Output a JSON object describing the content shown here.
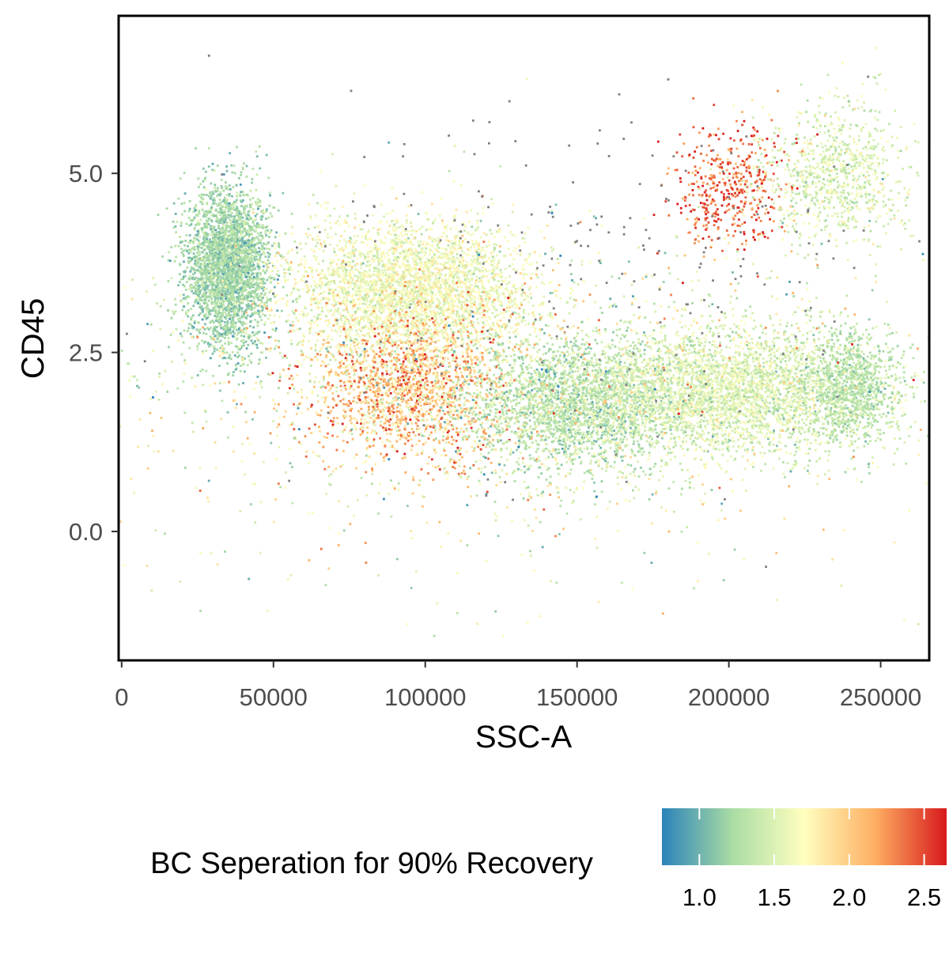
{
  "chart_data": {
    "type": "scatter",
    "title": "",
    "xlabel": "SSC-A",
    "ylabel": "CD45",
    "xlim": [
      -1000,
      266000
    ],
    "ylim": [
      -1.8,
      7.2
    ],
    "x_ticks": [
      0,
      50000,
      100000,
      150000,
      200000,
      250000
    ],
    "x_tick_labels": [
      "0",
      "50000",
      "100000",
      "150000",
      "200000",
      "250000"
    ],
    "y_ticks": [
      0.0,
      2.5,
      5.0
    ],
    "y_tick_labels": [
      "0.0",
      "2.5",
      "5.0"
    ],
    "grid": false,
    "point_color_na": "#7f7f7f",
    "color_scale": {
      "title": "BC Seperation for 90% Recovery",
      "position": "bottom",
      "range": [
        0.75,
        2.65
      ],
      "ticks": [
        1.0,
        1.5,
        2.0,
        2.5
      ],
      "tick_labels": [
        "1.0",
        "1.5",
        "2.0",
        "2.5"
      ],
      "palette": [
        "#2b83ba",
        "#abdda4",
        "#ffffbf",
        "#fdae61",
        "#d7191c"
      ]
    },
    "series": [
      {
        "clusters": [
          {
            "x": 35000,
            "y": 3.7,
            "sx": 7000,
            "sy": 0.55,
            "n": 3000,
            "color_value": 1.2,
            "color_sd": 0.12
          },
          {
            "x": 95000,
            "y": 3.4,
            "sx": 20000,
            "sy": 0.45,
            "n": 3200,
            "color_value": 1.62,
            "color_sd": 0.15
          },
          {
            "x": 95000,
            "y": 2.05,
            "sx": 17000,
            "sy": 0.5,
            "n": 1800,
            "color_value": 2.05,
            "color_sd": 0.3
          },
          {
            "x": 150000,
            "y": 1.8,
            "sx": 18000,
            "sy": 0.45,
            "n": 2400,
            "color_value": 1.3,
            "color_sd": 0.15
          },
          {
            "x": 200000,
            "y": 1.95,
            "sx": 25000,
            "sy": 0.45,
            "n": 3400,
            "color_value": 1.5,
            "color_sd": 0.15
          },
          {
            "x": 240000,
            "y": 2.05,
            "sx": 8000,
            "sy": 0.4,
            "n": 900,
            "color_value": 1.3,
            "color_sd": 0.1
          },
          {
            "x": 200000,
            "y": 4.8,
            "sx": 10000,
            "sy": 0.45,
            "n": 450,
            "color_value": 2.4,
            "color_sd": 0.2
          },
          {
            "x": 235000,
            "y": 5.0,
            "sx": 12000,
            "sy": 0.5,
            "n": 900,
            "color_value": 1.5,
            "color_sd": 0.15
          },
          {
            "x": 120000,
            "y": 2.0,
            "sx": 70000,
            "sy": 1.2,
            "n": 1600,
            "color_value": 1.6,
            "color_sd": 0.35
          },
          {
            "x": 150000,
            "y": 3.5,
            "sx": 55000,
            "sy": 1.3,
            "n": 220,
            "color_value": null,
            "color_sd": 0
          }
        ]
      }
    ]
  }
}
